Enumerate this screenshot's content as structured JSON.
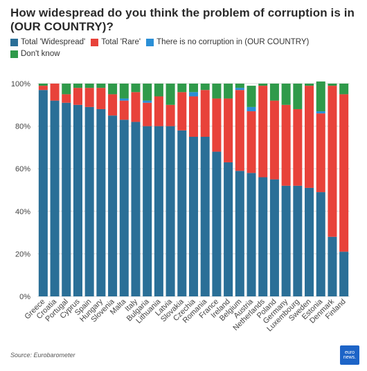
{
  "header": {
    "title": "How widespread do you think the problem of corruption is in (OUR COUNTRY)?"
  },
  "legend": {
    "items": [
      {
        "label": "Total 'Widespread'",
        "color": "#2a6f97"
      },
      {
        "label": "Total 'Rare'",
        "color": "#e8423a"
      },
      {
        "label": "There is no corruption in (OUR COUNTRY)",
        "color": "#2a8fd6"
      },
      {
        "label": "Don't know",
        "color": "#2f9a4a"
      }
    ]
  },
  "chart_data": {
    "type": "bar",
    "stacked": true,
    "categories": [
      "Greece",
      "Croatia",
      "Portugal",
      "Cyprus",
      "Spain",
      "Hungary",
      "Slovenia",
      "Malta",
      "Italy",
      "Bulgaria",
      "Lithuania",
      "Latvia",
      "Slovakia",
      "Czechia",
      "Romania",
      "France",
      "Ireland",
      "Belgium",
      "Austria",
      "Netherlands",
      "Poland",
      "Germany",
      "Luxembourg",
      "Sweden",
      "Estonia",
      "Denmark",
      "Finland"
    ],
    "series": [
      {
        "name": "Total 'Widespread'",
        "color": "#2a6f97",
        "values": [
          97,
          92,
          91,
          90,
          89,
          88,
          85,
          83,
          82,
          80,
          80,
          80,
          78,
          75,
          75,
          68,
          63,
          59,
          58,
          56,
          55,
          52,
          52,
          51,
          49,
          28,
          21
        ]
      },
      {
        "name": "Total 'Rare'",
        "color": "#e8423a",
        "values": [
          2,
          8,
          4,
          8,
          9,
          10,
          10,
          9,
          14,
          11,
          14,
          10,
          18,
          19,
          22,
          25,
          30,
          38,
          29,
          43,
          37,
          38,
          36,
          48,
          37,
          71,
          74
        ]
      },
      {
        "name": "There is no corruption in (OUR COUNTRY)",
        "color": "#2a8fd6",
        "values": [
          0,
          0,
          0,
          0,
          0,
          0,
          0,
          1,
          0,
          1,
          0,
          0,
          0,
          2,
          0,
          0,
          0,
          1,
          2,
          0,
          0,
          0,
          0,
          0,
          1,
          0,
          0
        ]
      },
      {
        "name": "Don't know",
        "color": "#2f9a4a",
        "values": [
          1,
          0,
          5,
          2,
          2,
          2,
          5,
          7,
          4,
          8,
          6,
          10,
          4,
          4,
          3,
          7,
          7,
          2,
          10,
          1,
          8,
          10,
          12,
          1,
          14,
          1,
          5
        ]
      }
    ],
    "yticks": [
      "0%",
      "20%",
      "40%",
      "60%",
      "80%",
      "100%"
    ],
    "ylim": [
      0,
      100
    ],
    "grid": true,
    "legend_position": "top"
  },
  "footer": {
    "source": "Source: Eurobarometer",
    "logo_top": "euro",
    "logo_bottom": "news."
  }
}
